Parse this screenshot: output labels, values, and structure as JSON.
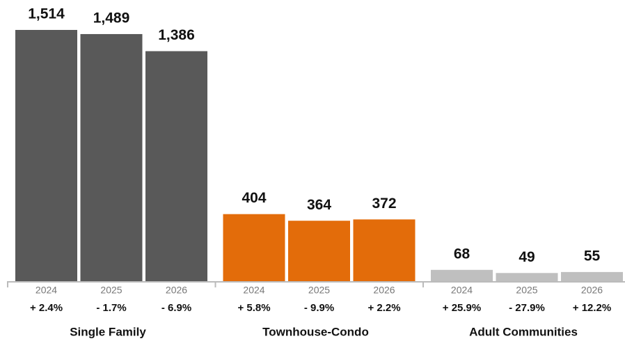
{
  "chart_data": {
    "type": "bar",
    "groups": [
      {
        "name": "Single Family",
        "color": "#595959",
        "categories": [
          "2024",
          "2025",
          "2026"
        ],
        "values": [
          1514,
          1489,
          1386
        ],
        "value_labels": [
          "1,514",
          "1,489",
          "1,386"
        ],
        "change_labels": [
          "+ 2.4%",
          "- 1.7%",
          "- 6.9%"
        ]
      },
      {
        "name": "Townhouse-Condo",
        "color": "#e36c0a",
        "categories": [
          "2024",
          "2025",
          "2026"
        ],
        "values": [
          404,
          364,
          372
        ],
        "value_labels": [
          "404",
          "364",
          "372"
        ],
        "change_labels": [
          "+ 5.8%",
          "- 9.9%",
          "+ 2.2%"
        ]
      },
      {
        "name": "Adult Communities",
        "color": "#bfbfbf",
        "categories": [
          "2024",
          "2025",
          "2026"
        ],
        "values": [
          68,
          49,
          55
        ],
        "value_labels": [
          "68",
          "49",
          "55"
        ],
        "change_labels": [
          "+ 25.9%",
          "- 27.9%",
          "+ 12.2%"
        ]
      }
    ]
  }
}
